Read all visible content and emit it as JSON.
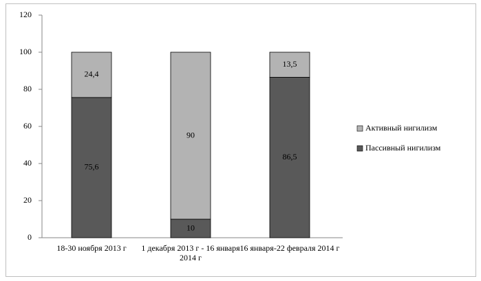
{
  "chart_data": {
    "type": "stacked_bar",
    "categories": [
      "18-30  ноября 2013  г",
      "1 декабря 2013  г - 16 января 2014  г",
      "16 января-22 февраля 2014  г"
    ],
    "series": [
      {
        "name": "Пассивный нигилизм",
        "color": "#595959",
        "values": [
          75.6,
          10,
          86.5
        ],
        "value_labels": [
          "75,6",
          "10",
          "86,5"
        ]
      },
      {
        "name": "Активный нигилизм",
        "color": "#b3b3b3",
        "values": [
          24.4,
          90,
          13.5
        ],
        "value_labels": [
          "24,4",
          "90",
          "13,5"
        ]
      }
    ],
    "ylim": [
      0,
      120
    ],
    "yticks": [
      0,
      20,
      40,
      60,
      80,
      100,
      120
    ],
    "grid": false,
    "legend": "right"
  }
}
